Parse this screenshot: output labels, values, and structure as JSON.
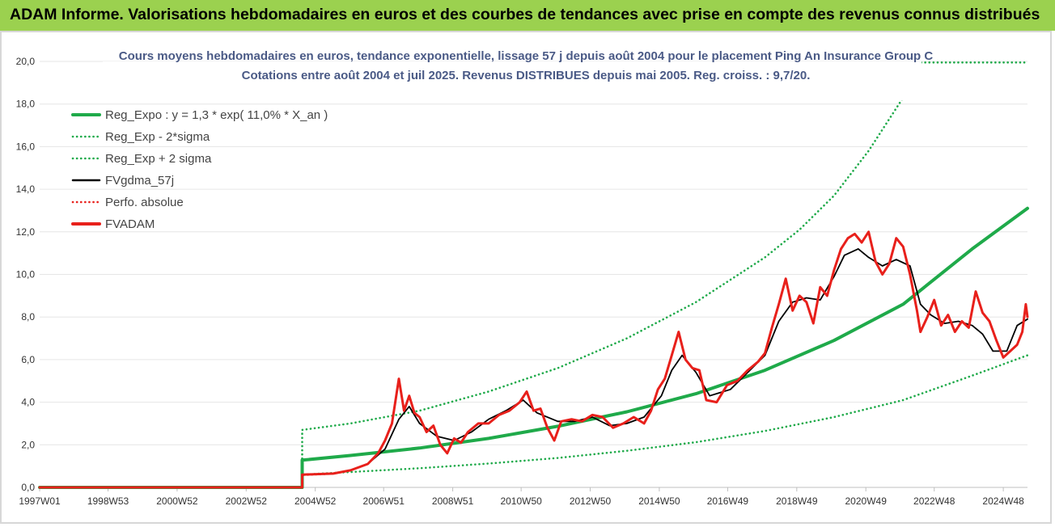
{
  "header": {
    "title": "ADAM Informe. Valorisations hebdomadaires en euros et des courbes de tendances avec prise en compte des revenus connus distribués"
  },
  "chart_data": {
    "type": "line",
    "title": "Cours moyens hebdomadaires en euros, tendance exponentielle, lissage 57 j depuis août 2004 pour le placement Ping An Insurance Group C",
    "subtitle": "Cotations entre août 2004 et juil 2025. Revenus DISTRIBUES depuis mai 2005. Reg. croiss. : 9,7/20.",
    "ylim": [
      0,
      20
    ],
    "y_ticks": [
      "0,0",
      "2,0",
      "4,0",
      "6,0",
      "8,0",
      "10,0",
      "12,0",
      "14,0",
      "16,0",
      "18,0",
      "20,0"
    ],
    "xlim": [
      1997.0,
      2025.6
    ],
    "x_ticks": [
      {
        "label": "1997W01",
        "x": 1997.0
      },
      {
        "label": "1998W53",
        "x": 1998.98
      },
      {
        "label": "2000W52",
        "x": 2000.98
      },
      {
        "label": "2002W52",
        "x": 2002.98
      },
      {
        "label": "2004W52",
        "x": 2004.98
      },
      {
        "label": "2006W51",
        "x": 2006.96
      },
      {
        "label": "2008W51",
        "x": 2008.96
      },
      {
        "label": "2010W50",
        "x": 2010.94
      },
      {
        "label": "2012W50",
        "x": 2012.94
      },
      {
        "label": "2014W50",
        "x": 2014.94
      },
      {
        "label": "2016W49",
        "x": 2016.92
      },
      {
        "label": "2018W49",
        "x": 2018.92
      },
      {
        "label": "2020W49",
        "x": 2020.92
      },
      {
        "label": "2022W48",
        "x": 2022.9
      },
      {
        "label": "2024W48",
        "x": 2024.9
      }
    ],
    "legend_position": "top-left",
    "series": [
      {
        "name": "Reg_Expo : y = 1,3 * exp( 11,0% *  X_an )",
        "color": "#1faa4a",
        "style": "solid",
        "points": [
          [
            1997.0,
            0
          ],
          [
            2004.6,
            0
          ],
          [
            2004.6,
            1.28
          ],
          [
            2006,
            1.5
          ],
          [
            2008,
            1.85
          ],
          [
            2010,
            2.3
          ],
          [
            2012,
            2.87
          ],
          [
            2014,
            3.55
          ],
          [
            2016,
            4.4
          ],
          [
            2018,
            5.5
          ],
          [
            2020,
            6.9
          ],
          [
            2022,
            8.6
          ],
          [
            2024,
            11.2
          ],
          [
            2025.6,
            13.1
          ]
        ]
      },
      {
        "name": "Reg_Exp - 2*sigma",
        "color": "#1faa4a",
        "style": "dotted",
        "points": [
          [
            2004.6,
            0.6
          ],
          [
            2006,
            0.72
          ],
          [
            2008,
            0.9
          ],
          [
            2010,
            1.12
          ],
          [
            2012,
            1.38
          ],
          [
            2014,
            1.72
          ],
          [
            2016,
            2.12
          ],
          [
            2018,
            2.65
          ],
          [
            2020,
            3.3
          ],
          [
            2022,
            4.1
          ],
          [
            2024,
            5.25
          ],
          [
            2025.6,
            6.2
          ]
        ]
      },
      {
        "name": "Reg_Exp + 2 sigma",
        "color": "#1faa4a",
        "style": "dotted",
        "points": [
          [
            2004.6,
            0
          ],
          [
            2004.6,
            2.7
          ],
          [
            2006,
            3.0
          ],
          [
            2008,
            3.6
          ],
          [
            2010,
            4.5
          ],
          [
            2012,
            5.6
          ],
          [
            2014,
            7.0
          ],
          [
            2016,
            8.7
          ],
          [
            2018,
            10.8
          ],
          [
            2019,
            12.1
          ],
          [
            2020,
            13.7
          ],
          [
            2021,
            15.8
          ],
          [
            2022,
            18.3
          ],
          [
            2022.4,
            18.9
          ]
        ]
      },
      {
        "name": "",
        "color": "#1faa4a",
        "style": "dotted",
        "points": [
          [
            2022.4,
            19.95
          ],
          [
            2025.6,
            19.95
          ]
        ]
      },
      {
        "name": "FVgdma_57j",
        "color": "#000000",
        "style": "solid",
        "points": [
          [
            1997.0,
            0
          ],
          [
            2004.6,
            0
          ],
          [
            2004.6,
            0.6
          ],
          [
            2005.5,
            0.65
          ],
          [
            2006,
            0.8
          ],
          [
            2006.5,
            1.1
          ],
          [
            2007,
            1.8
          ],
          [
            2007.4,
            3.2
          ],
          [
            2007.7,
            3.8
          ],
          [
            2008,
            3.0
          ],
          [
            2008.5,
            2.4
          ],
          [
            2009,
            2.2
          ],
          [
            2009.5,
            2.6
          ],
          [
            2010,
            3.2
          ],
          [
            2010.5,
            3.6
          ],
          [
            2011,
            4.1
          ],
          [
            2011.4,
            3.5
          ],
          [
            2012,
            3.1
          ],
          [
            2012.5,
            3.1
          ],
          [
            2013,
            3.3
          ],
          [
            2013.5,
            2.9
          ],
          [
            2014,
            3.0
          ],
          [
            2014.5,
            3.3
          ],
          [
            2015,
            4.3
          ],
          [
            2015.3,
            5.5
          ],
          [
            2015.6,
            6.2
          ],
          [
            2016,
            5.4
          ],
          [
            2016.4,
            4.3
          ],
          [
            2017,
            4.6
          ],
          [
            2017.5,
            5.4
          ],
          [
            2018,
            6.2
          ],
          [
            2018.4,
            7.8
          ],
          [
            2018.8,
            8.7
          ],
          [
            2019.2,
            8.9
          ],
          [
            2019.6,
            8.8
          ],
          [
            2020,
            9.9
          ],
          [
            2020.3,
            10.9
          ],
          [
            2020.7,
            11.2
          ],
          [
            2021,
            10.8
          ],
          [
            2021.4,
            10.4
          ],
          [
            2021.8,
            10.7
          ],
          [
            2022.2,
            10.4
          ],
          [
            2022.5,
            8.6
          ],
          [
            2022.8,
            8.1
          ],
          [
            2023.2,
            7.7
          ],
          [
            2023.6,
            7.8
          ],
          [
            2024,
            7.6
          ],
          [
            2024.3,
            7.2
          ],
          [
            2024.6,
            6.4
          ],
          [
            2025,
            6.4
          ],
          [
            2025.3,
            7.6
          ],
          [
            2025.6,
            7.9
          ]
        ]
      },
      {
        "name": "Perfo. absolue",
        "color": "#e8201b",
        "style": "dotted",
        "points": [
          [
            1997.0,
            0
          ],
          [
            2004.6,
            0
          ],
          [
            2004.6,
            0.58
          ],
          [
            2005.5,
            0.64
          ],
          [
            2006,
            0.8
          ]
        ]
      },
      {
        "name": "FVADAM",
        "color": "#e8201b",
        "style": "solid",
        "points": [
          [
            1997.0,
            0
          ],
          [
            2004.6,
            0
          ],
          [
            2004.6,
            0.6
          ],
          [
            2005.5,
            0.65
          ],
          [
            2006,
            0.8
          ],
          [
            2006.5,
            1.1
          ],
          [
            2006.8,
            1.6
          ],
          [
            2007,
            2.2
          ],
          [
            2007.2,
            3.0
          ],
          [
            2007.4,
            5.1
          ],
          [
            2007.55,
            3.6
          ],
          [
            2007.7,
            4.3
          ],
          [
            2007.85,
            3.5
          ],
          [
            2008,
            3.3
          ],
          [
            2008.2,
            2.6
          ],
          [
            2008.4,
            2.9
          ],
          [
            2008.6,
            2.0
          ],
          [
            2008.8,
            1.6
          ],
          [
            2009,
            2.3
          ],
          [
            2009.2,
            2.1
          ],
          [
            2009.4,
            2.6
          ],
          [
            2009.7,
            3.0
          ],
          [
            2010,
            3.0
          ],
          [
            2010.3,
            3.4
          ],
          [
            2010.6,
            3.6
          ],
          [
            2010.9,
            4.0
          ],
          [
            2011.1,
            4.5
          ],
          [
            2011.3,
            3.6
          ],
          [
            2011.5,
            3.7
          ],
          [
            2011.7,
            2.8
          ],
          [
            2011.9,
            2.2
          ],
          [
            2012.1,
            3.1
          ],
          [
            2012.4,
            3.2
          ],
          [
            2012.7,
            3.1
          ],
          [
            2013,
            3.4
          ],
          [
            2013.3,
            3.3
          ],
          [
            2013.6,
            2.8
          ],
          [
            2013.9,
            3.0
          ],
          [
            2014.2,
            3.3
          ],
          [
            2014.5,
            3.0
          ],
          [
            2014.7,
            3.6
          ],
          [
            2014.9,
            4.6
          ],
          [
            2015.1,
            5.1
          ],
          [
            2015.3,
            6.2
          ],
          [
            2015.5,
            7.3
          ],
          [
            2015.7,
            6.0
          ],
          [
            2015.9,
            5.6
          ],
          [
            2016.1,
            5.5
          ],
          [
            2016.3,
            4.1
          ],
          [
            2016.6,
            4.0
          ],
          [
            2016.9,
            4.8
          ],
          [
            2017.2,
            5.0
          ],
          [
            2017.5,
            5.5
          ],
          [
            2017.8,
            5.9
          ],
          [
            2018,
            6.3
          ],
          [
            2018.2,
            7.5
          ],
          [
            2018.4,
            8.6
          ],
          [
            2018.6,
            9.8
          ],
          [
            2018.8,
            8.3
          ],
          [
            2019,
            9.0
          ],
          [
            2019.2,
            8.7
          ],
          [
            2019.4,
            7.7
          ],
          [
            2019.6,
            9.4
          ],
          [
            2019.8,
            9.0
          ],
          [
            2020,
            10.2
          ],
          [
            2020.2,
            11.2
          ],
          [
            2020.4,
            11.7
          ],
          [
            2020.6,
            11.9
          ],
          [
            2020.8,
            11.5
          ],
          [
            2021,
            12.0
          ],
          [
            2021.2,
            10.6
          ],
          [
            2021.4,
            10.0
          ],
          [
            2021.6,
            10.5
          ],
          [
            2021.8,
            11.7
          ],
          [
            2022,
            11.3
          ],
          [
            2022.2,
            10.0
          ],
          [
            2022.4,
            8.3
          ],
          [
            2022.5,
            7.3
          ],
          [
            2022.7,
            8.0
          ],
          [
            2022.9,
            8.8
          ],
          [
            2023.1,
            7.6
          ],
          [
            2023.3,
            8.1
          ],
          [
            2023.5,
            7.3
          ],
          [
            2023.7,
            7.8
          ],
          [
            2023.9,
            7.5
          ],
          [
            2024.1,
            9.2
          ],
          [
            2024.3,
            8.2
          ],
          [
            2024.5,
            7.8
          ],
          [
            2024.7,
            6.9
          ],
          [
            2024.9,
            6.1
          ],
          [
            2025.1,
            6.4
          ],
          [
            2025.3,
            6.7
          ],
          [
            2025.45,
            7.3
          ],
          [
            2025.55,
            8.6
          ],
          [
            2025.6,
            8.0
          ]
        ]
      }
    ]
  }
}
